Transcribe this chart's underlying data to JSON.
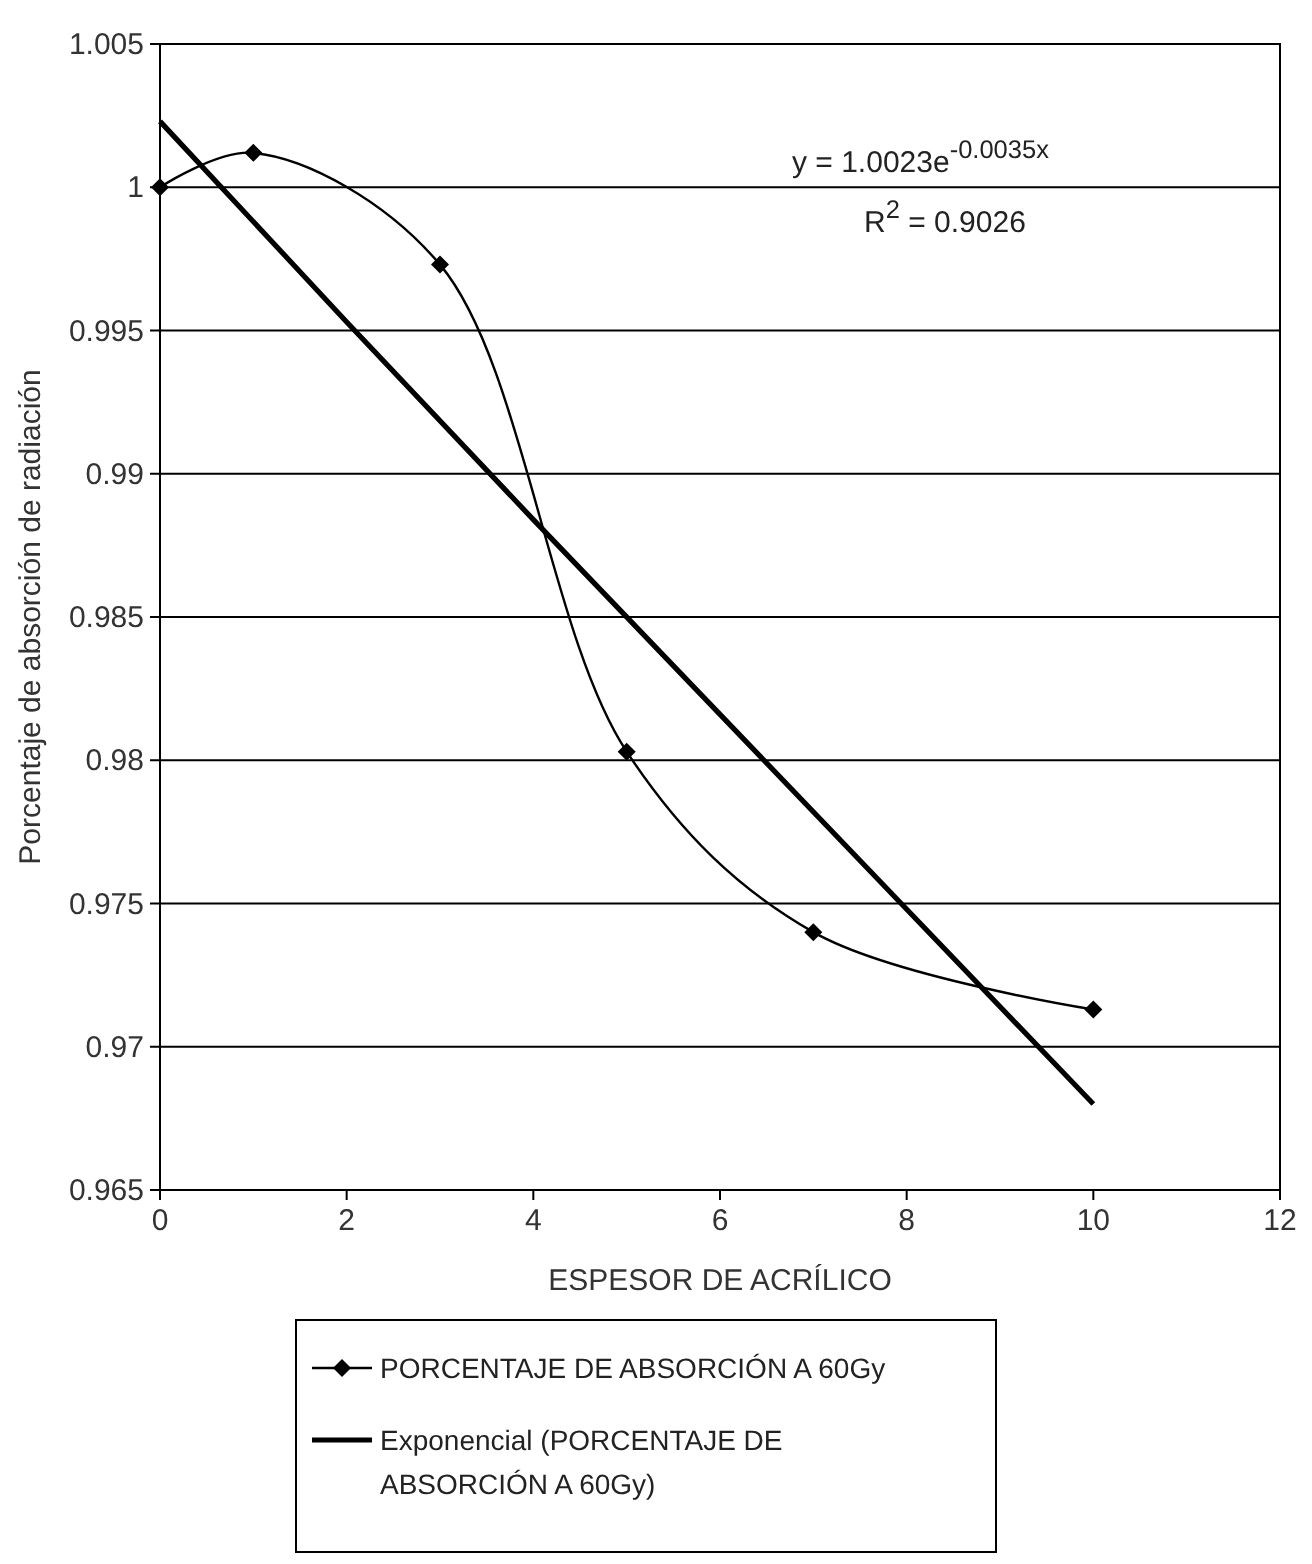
{
  "chart_data": {
    "type": "line",
    "xlabel": "ESPESOR DE ACRÍLICO",
    "ylabel": "Porcentaje de absorción de radiación",
    "xlim": [
      0,
      12
    ],
    "xticks": [
      0,
      2,
      4,
      6,
      8,
      10,
      12
    ],
    "ylim": [
      0.965,
      1.005
    ],
    "yticks": [
      0.965,
      0.97,
      0.975,
      0.98,
      0.985,
      0.99,
      0.995,
      1,
      1.005
    ],
    "grid": "y",
    "legend": "bottom",
    "series": [
      {
        "name": "PORCENTAJE DE ABSORCIÓN A 60Gy",
        "color": "#000000",
        "marker": "diamond",
        "x": [
          0,
          1,
          3,
          5,
          7,
          10
        ],
        "values": [
          1.0,
          1.0012,
          0.9973,
          0.9803,
          0.974,
          0.9713
        ]
      },
      {
        "name": "Exponencial (PORCENTAJE DE ABSORCIÓN A 60Gy)",
        "color": "#000000",
        "marker": "none",
        "x": [
          0,
          2,
          4,
          6,
          8,
          10
        ],
        "values": [
          1.0023,
          0.9953,
          0.9884,
          0.9816,
          0.9748,
          0.968
        ]
      }
    ],
    "annotations": [
      {
        "text": "y = 1.0023e$^{-0.0035x}$"
      },
      {
        "text": "R$^{2}$ = 0.9026"
      }
    ]
  }
}
